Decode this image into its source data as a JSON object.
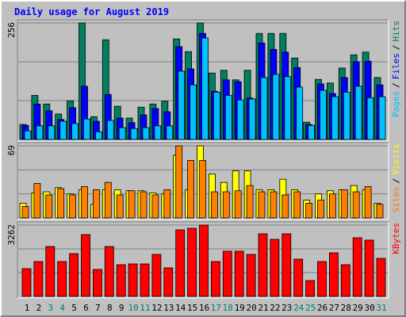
{
  "title": "Daily usage for August 2019",
  "legend_separator": "/",
  "chart_data": [
    {
      "type": "bar",
      "ylim": [
        0,
        256
      ],
      "yticks": [
        256
      ],
      "series": [
        {
          "name": "Hits",
          "color": "#008060",
          "values": [
            33,
            97,
            78,
            56,
            85,
            256,
            50,
            219,
            73,
            47,
            71,
            78,
            84,
            221,
            193,
            256,
            146,
            152,
            131,
            152,
            233,
            233,
            233,
            179,
            38,
            132,
            124,
            157,
            186,
            192,
            136
          ]
        },
        {
          "name": "Files",
          "color": "#0000ff",
          "values": [
            31,
            78,
            63,
            44,
            70,
            117,
            40,
            99,
            47,
            37,
            54,
            68,
            61,
            204,
            155,
            233,
            106,
            131,
            127,
            91,
            212,
            198,
            192,
            158,
            33,
            122,
            101,
            136,
            171,
            172,
            120
          ]
        },
        {
          "name": "Pages",
          "color": "#00c0ff",
          "values": [
            19,
            30,
            30,
            40,
            35,
            45,
            17,
            42,
            26,
            24,
            26,
            30,
            30,
            150,
            120,
            223,
            104,
            97,
            87,
            89,
            136,
            143,
            138,
            115,
            31,
            108,
            94,
            104,
            117,
            92,
            94
          ]
        }
      ]
    },
    {
      "type": "bar",
      "ylim": [
        0,
        69
      ],
      "yticks": [
        69
      ],
      "series": [
        {
          "name": "Visits",
          "color": "#ffff00",
          "values": [
            14,
            24,
            25,
            29,
            23,
            27,
            13,
            27,
            27,
            26,
            26,
            24,
            23,
            60,
            27,
            69,
            42,
            34,
            45,
            45,
            27,
            27,
            37,
            27,
            17,
            23,
            26,
            27,
            31,
            27,
            14
          ]
        },
        {
          "name": "Sites",
          "color": "#ff8000",
          "values": [
            11,
            33,
            22,
            28,
            22,
            30,
            27,
            34,
            22,
            26,
            25,
            22,
            27,
            69,
            55,
            55,
            25,
            25,
            26,
            31,
            25,
            25,
            22,
            25,
            14,
            17,
            23,
            27,
            25,
            30,
            13
          ]
        }
      ]
    },
    {
      "type": "bar",
      "ylim": [
        0,
        3262
      ],
      "yticks": [
        3262
      ],
      "categories": [
        "1",
        "2",
        "3",
        "4",
        "5",
        "6",
        "7",
        "8",
        "9",
        "10",
        "11",
        "12",
        "13",
        "14",
        "15",
        "16",
        "17",
        "18",
        "19",
        "20",
        "21",
        "22",
        "23",
        "24",
        "25",
        "26",
        "27",
        "28",
        "29",
        "30",
        "31"
      ],
      "category_colors": [
        "#000000",
        "#000000",
        "#008060",
        "#008060",
        "#000000",
        "#000000",
        "#000000",
        "#000000",
        "#000000",
        "#008060",
        "#008060",
        "#000000",
        "#000000",
        "#000000",
        "#000000",
        "#000000",
        "#008060",
        "#008060",
        "#000000",
        "#000000",
        "#000000",
        "#000000",
        "#000000",
        "#008060",
        "#008060",
        "#000000",
        "#000000",
        "#000000",
        "#000000",
        "#000000",
        "#008060"
      ],
      "series": [
        {
          "name": "KBytes",
          "color": "#ff0000",
          "values": [
            1269,
            1595,
            2283,
            1595,
            1957,
            2827,
            1232,
            2283,
            1450,
            1486,
            1486,
            1921,
            1305,
            3045,
            3117,
            3262,
            1595,
            2066,
            2066,
            1921,
            2863,
            2610,
            2863,
            1703,
            725,
            1595,
            1993,
            1450,
            2682,
            2573,
            1740
          ]
        }
      ]
    }
  ]
}
